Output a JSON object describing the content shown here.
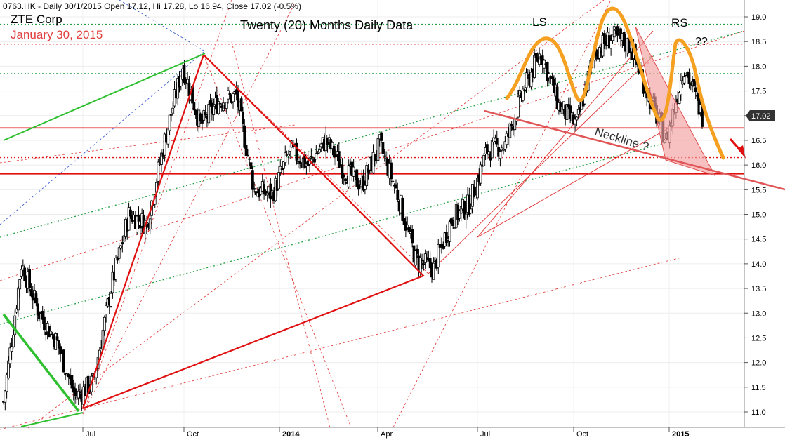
{
  "header": {
    "info": "0763.HK - Daily 30/1/2015 Open 17.12, Hi 17.28, Lo 16.94, Close 17.02 (-0.5%)",
    "company": "ZTE Corp",
    "date": "January 30, 2015",
    "title": "Twenty (20) Months Daily Data"
  },
  "annotations": {
    "ls": "LS",
    "rs": "RS",
    "qq": "??",
    "neckline": "Neckline ?"
  },
  "last_price_label": "17.02",
  "colors": {
    "candles": "#000000",
    "trend_red": "#e01010",
    "trend_green": "#2ec02e",
    "pattern_orange": "#f5a020",
    "shade_pink": "#f4a0a0",
    "grid": "#c8c8c8",
    "dotted_green": "#20a040",
    "dotted_red": "#d02020"
  },
  "chart_data": {
    "type": "candlestick",
    "title": "Twenty (20) Months Daily Data",
    "ylim": [
      10.8,
      19.4
    ],
    "y_ticks": [
      "11.0",
      "11.5",
      "12.0",
      "12.5",
      "13.0",
      "13.5",
      "14.0",
      "14.5",
      "15.0",
      "15.5",
      "16.0",
      "16.5",
      "17.0",
      "17.5",
      "18.0",
      "18.5",
      "19.0"
    ],
    "x_ticks": [
      "Jul",
      "Oct",
      "2014",
      "Apr",
      "Jul",
      "Oct",
      "2015"
    ],
    "last_close": 17.02,
    "horizontal_levels": [
      {
        "value": 18.85,
        "style": "dotted",
        "color": "green"
      },
      {
        "value": 18.45,
        "style": "dotted",
        "color": "red"
      },
      {
        "value": 17.85,
        "style": "dotted",
        "color": "green"
      },
      {
        "value": 16.75,
        "style": "solid",
        "color": "red"
      },
      {
        "value": 16.15,
        "style": "dotted",
        "color": "red"
      },
      {
        "value": 15.82,
        "style": "solid",
        "color": "red"
      }
    ],
    "price_path": [
      [
        "Jun 2013",
        11.2
      ],
      [
        "Jun 2013",
        14.0
      ],
      [
        "Jun 2013",
        13.0
      ],
      [
        "Jul 2013",
        12.4
      ],
      [
        "Jul 2013",
        11.3
      ],
      [
        "Jul 2013",
        11.6
      ],
      [
        "Aug 2013",
        13.5
      ],
      [
        "Sep 2013",
        15.0
      ],
      [
        "Sep 2013",
        14.8
      ],
      [
        "Oct 2013",
        16.5
      ],
      [
        "Oct 2013",
        18.0
      ],
      [
        "Nov 2013",
        16.8
      ],
      [
        "Nov 2013",
        17.3
      ],
      [
        "Nov 2013",
        17.4
      ],
      [
        "Dec 2013",
        15.5
      ],
      [
        "Jan 2014",
        15.4
      ],
      [
        "Jan 2014",
        16.3
      ],
      [
        "Feb 2014",
        16.0
      ],
      [
        "Feb 2014",
        16.5
      ],
      [
        "Mar 2014",
        15.9
      ],
      [
        "Apr 2014",
        15.6
      ],
      [
        "Apr 2014",
        16.4
      ],
      [
        "May 2014",
        15.4
      ],
      [
        "May 2014",
        14.1
      ],
      [
        "Jun 2014",
        13.9
      ],
      [
        "Jun 2014",
        14.9
      ],
      [
        "Jul 2014",
        15.2
      ],
      [
        "Jul 2014",
        16.3
      ],
      [
        "Aug 2014",
        16.4
      ],
      [
        "Aug 2014",
        17.5
      ],
      [
        "Sep 2014",
        18.3
      ],
      [
        "Sep 2014",
        17.2
      ],
      [
        "Oct 2014",
        16.8
      ],
      [
        "Oct 2014",
        18.3
      ],
      [
        "Nov 2014",
        18.6
      ],
      [
        "Nov 2014",
        18.4
      ],
      [
        "Dec 2014",
        17.4
      ],
      [
        "Dec 2014",
        16.5
      ],
      [
        "Jan 2015",
        18.0
      ],
      [
        "Jan 2015",
        17.0
      ]
    ]
  }
}
